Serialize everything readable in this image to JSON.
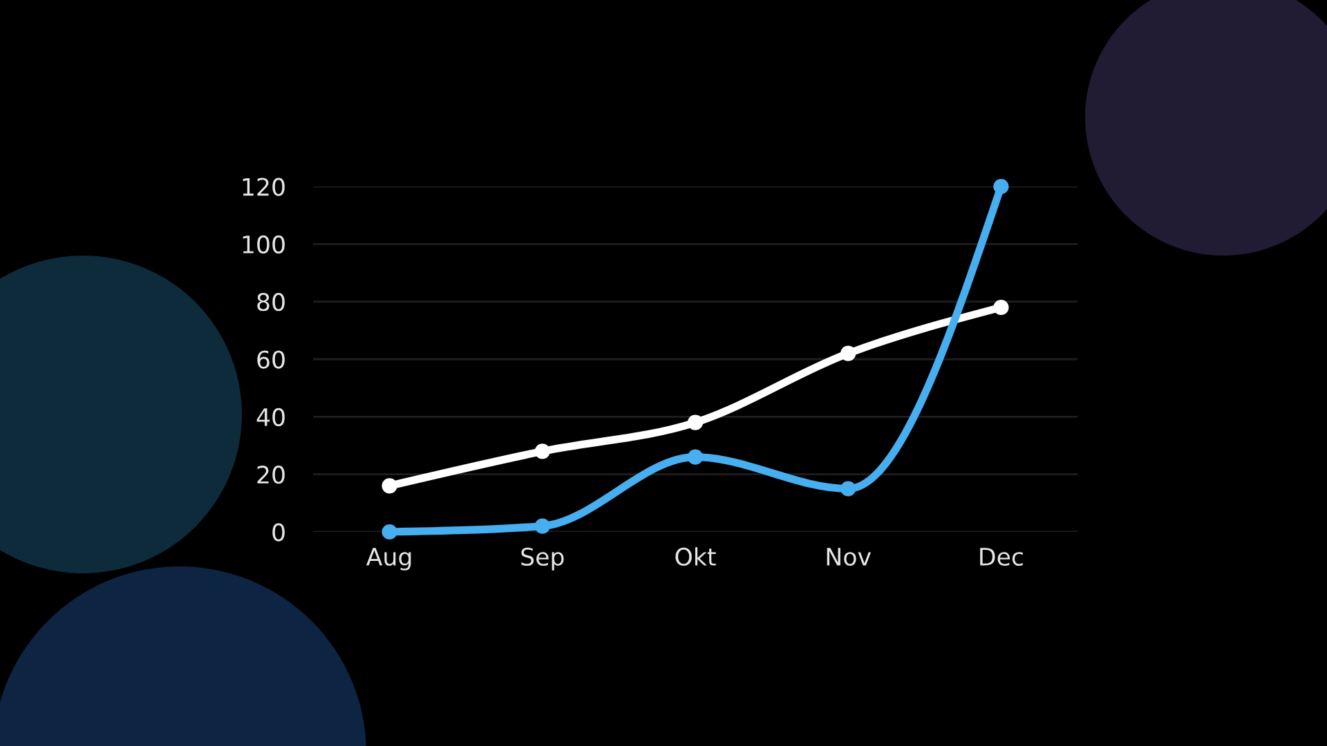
{
  "chart_data": {
    "type": "line",
    "categories": [
      "Aug",
      "Sep",
      "Okt",
      "Nov",
      "Dec"
    ],
    "series": [
      {
        "color": "#ffffff",
        "values": [
          16,
          28,
          38,
          62,
          78
        ]
      },
      {
        "color": "#47aef0",
        "values": [
          0,
          2,
          26,
          15,
          120
        ]
      }
    ],
    "ylim": [
      0,
      120
    ],
    "yticks": [
      0,
      20,
      40,
      60,
      80,
      100,
      120
    ],
    "grid": "y",
    "marker": "circle",
    "line_style": "solid"
  }
}
